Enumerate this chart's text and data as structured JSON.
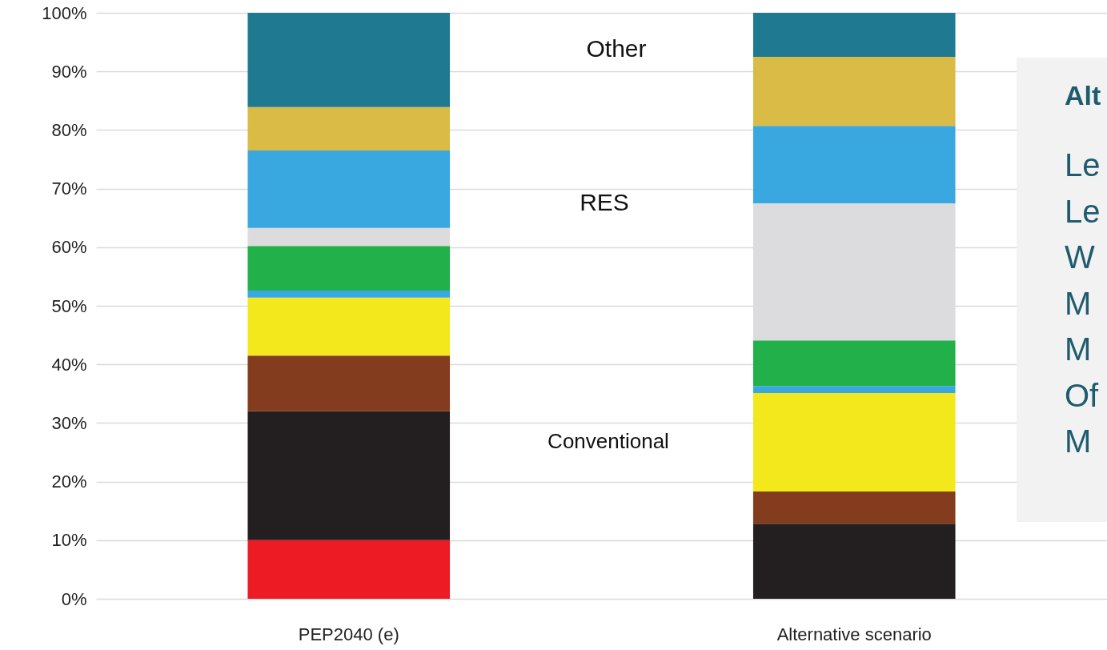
{
  "chart_data": {
    "type": "bar",
    "stacked": true,
    "categories": [
      "PEP2040 (e)",
      "Alternative scenario"
    ],
    "series": [
      {
        "color": "#ed1c24",
        "values": [
          10,
          0
        ]
      },
      {
        "color": "#231f20",
        "values": [
          22,
          12.8
        ]
      },
      {
        "color": "#843c1e",
        "values": [
          9.5,
          5.5
        ]
      },
      {
        "color": "#f2e81c",
        "values": [
          9.9,
          16.8
        ]
      },
      {
        "color": "#3aa8e0",
        "values": [
          1.2,
          1.2
        ]
      },
      {
        "color": "#22b04b",
        "values": [
          7.6,
          7.8
        ]
      },
      {
        "color": "#dcdcde",
        "values": [
          3.1,
          23.4
        ]
      },
      {
        "color": "#3aa8e0",
        "values": [
          13.2,
          13.2
        ]
      },
      {
        "color": "#d9bb45",
        "values": [
          7.4,
          11.8
        ]
      },
      {
        "color": "#1f7a91",
        "values": [
          16.1,
          7.5
        ]
      }
    ],
    "ylim": [
      0,
      100
    ],
    "yticks": [
      {
        "value": 0,
        "label": "0%"
      },
      {
        "value": 10,
        "label": "10%"
      },
      {
        "value": 20,
        "label": "20%"
      },
      {
        "value": 30,
        "label": "30%"
      },
      {
        "value": 40,
        "label": "40%"
      },
      {
        "value": 50,
        "label": "50%"
      },
      {
        "value": 60,
        "label": "60%"
      },
      {
        "value": 70,
        "label": "70%"
      },
      {
        "value": 80,
        "label": "80%"
      },
      {
        "value": 90,
        "label": "90%"
      },
      {
        "value": 100,
        "label": "100%"
      }
    ],
    "grid": "y",
    "annotations": [
      "Other",
      "RES",
      "Conventional",
      "Alt",
      "Le",
      "Le",
      "W",
      "M",
      "M",
      "Of",
      "M"
    ]
  }
}
